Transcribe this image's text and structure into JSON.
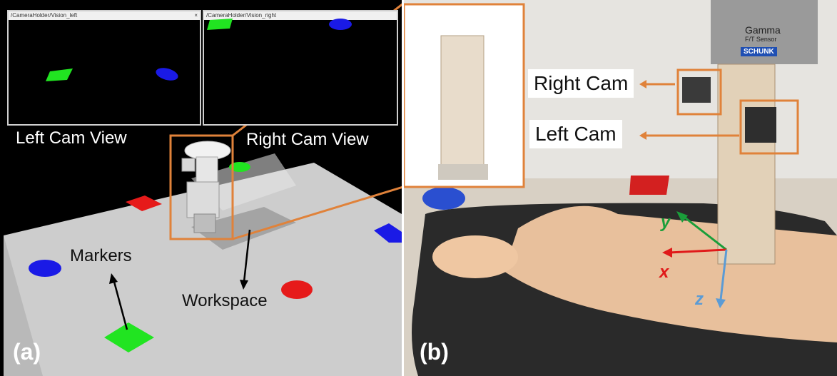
{
  "panel_a": {
    "tag": "(a)",
    "left_window_title": "/CameraHolder/Vision_left",
    "right_window_title": "/CameraHolder/Vision_right",
    "left_cam_view_label": "Left Cam View",
    "right_cam_view_label": "Right Cam View",
    "markers_label": "Markers",
    "workspace_label": "Workspace",
    "colors": {
      "floor": "#cfcfcf",
      "green": "#21e421",
      "blue": "#1a1ae6",
      "red": "#e61a1a",
      "orange": "#e0823a"
    }
  },
  "panel_b": {
    "tag": "(b)",
    "right_cam_label": "Right Cam",
    "left_cam_label": "Left Cam",
    "axis_y": "y",
    "axis_x": "x",
    "axis_z": "z",
    "inset_text": "Gamma",
    "inset_sub": "F/T Sensor",
    "schunk": "SCHUNK",
    "colors": {
      "y": "#1a9e3a",
      "x": "#e01a1a",
      "z": "#5b9bd5",
      "orange": "#e0823a"
    }
  }
}
